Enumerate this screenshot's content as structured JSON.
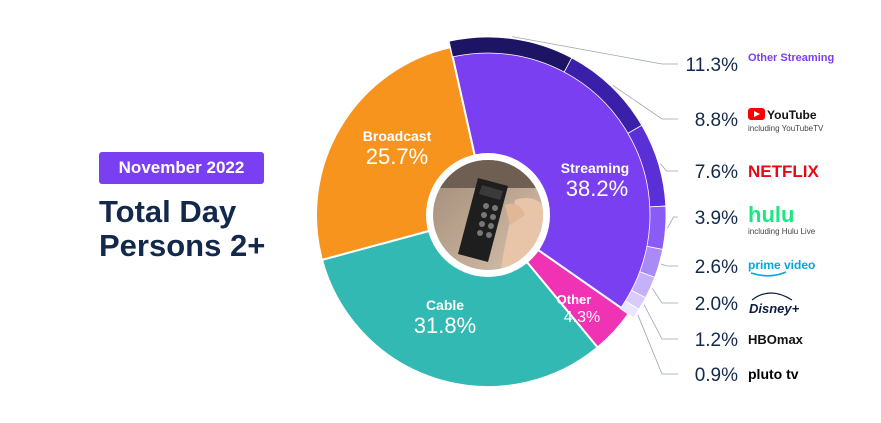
{
  "header": {
    "date_badge": "November 2022",
    "title_line1": "Total Day",
    "title_line2": "Persons 2+"
  },
  "colors": {
    "streaming": "#7b3ff2",
    "broadcast": "#f7941d",
    "cable": "#33b9b3",
    "other": "#f032b5",
    "title": "#13294b",
    "badge": "#7b3ff2",
    "netflix": "#e50914",
    "hulu": "#1ce783",
    "prime": "#00a8e1",
    "youtube": "#ff0000",
    "pluto": "#000000"
  },
  "chart_data": {
    "type": "pie",
    "title": "",
    "slices": [
      {
        "name": "Streaming",
        "value": 38.2,
        "label": "38.2%",
        "color": "#7b3ff2"
      },
      {
        "name": "Other",
        "value": 4.3,
        "label": "4.3%",
        "color": "#f032b5"
      },
      {
        "name": "Cable",
        "value": 31.8,
        "label": "31.8%",
        "color": "#33b9b3"
      },
      {
        "name": "Broadcast",
        "value": 25.7,
        "label": "25.7%",
        "color": "#f7941d"
      }
    ],
    "streaming_breakdown": [
      {
        "name": "Other Streaming",
        "value": 11.3,
        "label": "11.3%"
      },
      {
        "name": "YouTube",
        "sub": "including YouTubeTV",
        "value": 8.8,
        "label": "8.8%"
      },
      {
        "name": "NETFLIX",
        "value": 7.6,
        "label": "7.6%"
      },
      {
        "name": "hulu",
        "sub": "including Hulu Live",
        "value": 3.9,
        "label": "3.9%"
      },
      {
        "name": "prime video",
        "value": 2.6,
        "label": "2.6%"
      },
      {
        "name": "Disney+",
        "value": 2.0,
        "label": "2.0%"
      },
      {
        "name": "HBOmax",
        "value": 1.2,
        "label": "1.2%"
      },
      {
        "name": "pluto tv",
        "value": 0.9,
        "label": "0.9%"
      }
    ]
  }
}
